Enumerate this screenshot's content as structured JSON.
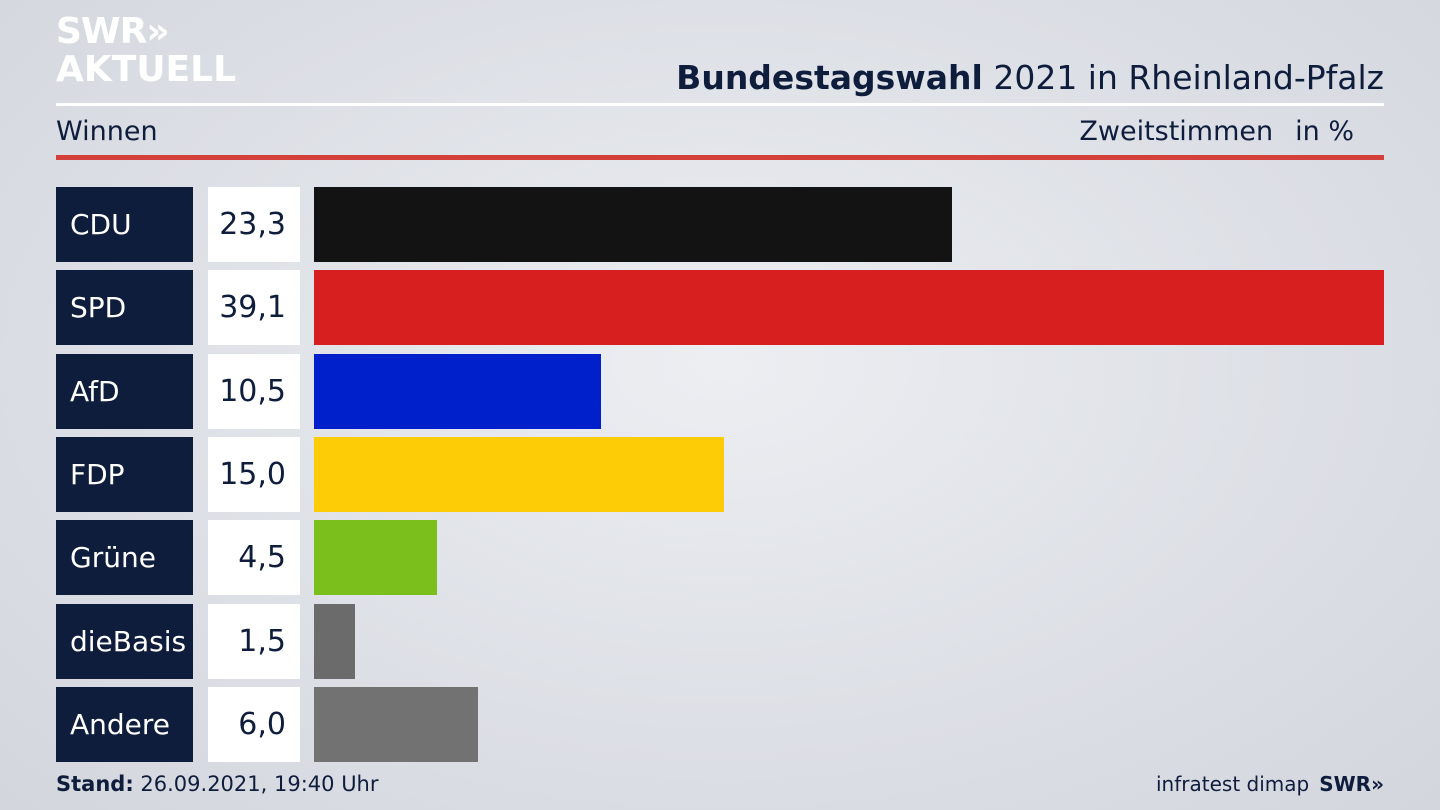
{
  "logo": {
    "line1": "SWR»",
    "line2": "AKTUELL"
  },
  "header": {
    "title_bold": "Bundestagswahl",
    "title_rest": "2021 in Rheinland-Pfalz",
    "subtitle_left": "Winnen",
    "subtitle_right_a": "Zweitstimmen",
    "subtitle_right_b": "in %"
  },
  "colors": {
    "label_bg": "#0f1d3d",
    "accent_rule": "#d3403a"
  },
  "chart_data": {
    "type": "bar",
    "orientation": "horizontal",
    "categories": [
      "CDU",
      "SPD",
      "AfD",
      "FDP",
      "Grüne",
      "dieBasis",
      "Andere"
    ],
    "values": [
      23.3,
      39.1,
      10.5,
      15.0,
      4.5,
      1.5,
      6.0
    ],
    "value_labels": [
      "23,3",
      "39,1",
      "10,5",
      "15,0",
      "4,5",
      "1,5",
      "6,0"
    ],
    "colors": [
      "#131313",
      "#d81f20",
      "#0020cc",
      "#fecb07",
      "#7bbf1c",
      "#6b6b6b",
      "#727272"
    ],
    "xlim": [
      0,
      39.1
    ],
    "ylabel": "in %",
    "grid": false,
    "legend": "none"
  },
  "footer": {
    "stand_label": "Stand:",
    "stand_value": "26.09.2021, 19:40 Uhr",
    "source": "infratest dimap",
    "brand": "SWR»"
  }
}
